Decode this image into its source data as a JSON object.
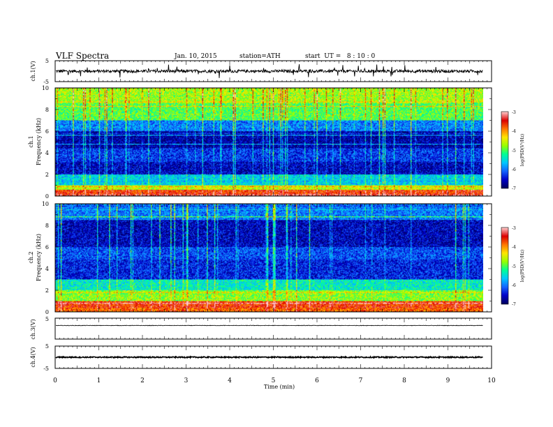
{
  "header": {
    "title": "VLF Spectra",
    "date": "Jan. 10, 2015",
    "station": "station=ATH",
    "start": "start  UT =   8 : 10 : 0"
  },
  "chart_data": [
    {
      "type": "line",
      "panel": "ch1-waveform",
      "ylabel": "ch.1(V)",
      "ylim": [
        -5,
        5
      ],
      "yticks": [
        "5",
        "-5"
      ],
      "baseline": 0,
      "noise_amplitude": 0.7,
      "spike_amplitude": 2.8
    },
    {
      "type": "heatmap",
      "panel": "ch1-spectrogram",
      "ylabel": [
        "ch.1",
        "Frequency (kHz)"
      ],
      "ylim": [
        0,
        10
      ],
      "yticks": [
        "0",
        "2",
        "4",
        "6",
        "8",
        "10"
      ],
      "colorbar": {
        "label": "log(PSD(V²/Hz)",
        "range": [
          -7,
          -3
        ],
        "ticks": [
          "-3",
          "-4",
          "-5",
          "-6",
          "-7"
        ]
      },
      "dominant_band_kHz": [
        {
          "from": 0.0,
          "to": 0.2,
          "level": -3.3
        },
        {
          "from": 0.2,
          "to": 0.6,
          "level": -3.6
        },
        {
          "from": 0.6,
          "to": 1.0,
          "level": -4.6
        },
        {
          "from": 1.0,
          "to": 2.0,
          "level": -5.6
        },
        {
          "from": 2.0,
          "to": 3.2,
          "level": -6.6
        },
        {
          "from": 3.2,
          "to": 4.4,
          "level": -6.3
        },
        {
          "from": 4.4,
          "to": 6.0,
          "level": -6.7
        },
        {
          "from": 6.0,
          "to": 7.0,
          "level": -6.0
        },
        {
          "from": 7.0,
          "to": 8.6,
          "level": -5.0
        },
        {
          "from": 8.6,
          "to": 10.0,
          "level": -4.7
        }
      ]
    },
    {
      "type": "heatmap",
      "panel": "ch2-spectrogram",
      "ylabel": [
        "ch.2",
        "Frequency (kHz)"
      ],
      "ylim": [
        0,
        10
      ],
      "yticks": [
        "0",
        "2",
        "4",
        "6",
        "8",
        "10"
      ],
      "colorbar": {
        "label": "log(PSD(V²/Hz)",
        "range": [
          -7,
          -3
        ],
        "ticks": [
          "-3",
          "-4",
          "-5",
          "-6",
          "-7"
        ]
      },
      "dominant_band_kHz": [
        {
          "from": 0.0,
          "to": 0.3,
          "level": -3.8
        },
        {
          "from": 0.3,
          "to": 1.0,
          "level": -3.6
        },
        {
          "from": 1.0,
          "to": 2.0,
          "level": -4.8
        },
        {
          "from": 2.0,
          "to": 3.0,
          "level": -5.4
        },
        {
          "from": 3.0,
          "to": 4.8,
          "level": -6.4
        },
        {
          "from": 4.8,
          "to": 6.0,
          "level": -6.2
        },
        {
          "from": 6.0,
          "to": 8.5,
          "level": -6.6
        },
        {
          "from": 8.5,
          "to": 10.0,
          "level": -6.0
        }
      ]
    },
    {
      "type": "line",
      "panel": "ch3-waveform",
      "ylabel": "ch.3(V)",
      "ylim": [
        -5,
        5
      ],
      "yticks": [
        "5"
      ],
      "baseline": 1.5,
      "noise_amplitude": 0.12
    },
    {
      "type": "line",
      "panel": "ch4-waveform",
      "ylabel": "ch.4(V)",
      "ylim": [
        -5,
        5
      ],
      "yticks": [
        "5",
        "-5"
      ],
      "baseline": 0,
      "noise_amplitude": 0.25
    }
  ],
  "x_axis": {
    "label": "Time (min)",
    "range": [
      0,
      10
    ],
    "data_end": 9.8,
    "ticks": [
      "0",
      "1",
      "2",
      "3",
      "4",
      "5",
      "6",
      "7",
      "8",
      "9",
      "10"
    ]
  },
  "colors": {
    "colormap": [
      "#000060",
      "#0000c8",
      "#1464ff",
      "#00c8ff",
      "#00ff96",
      "#96ff00",
      "#ffe600",
      "#ff7800",
      "#dc0000",
      "#ffc8c8"
    ]
  }
}
